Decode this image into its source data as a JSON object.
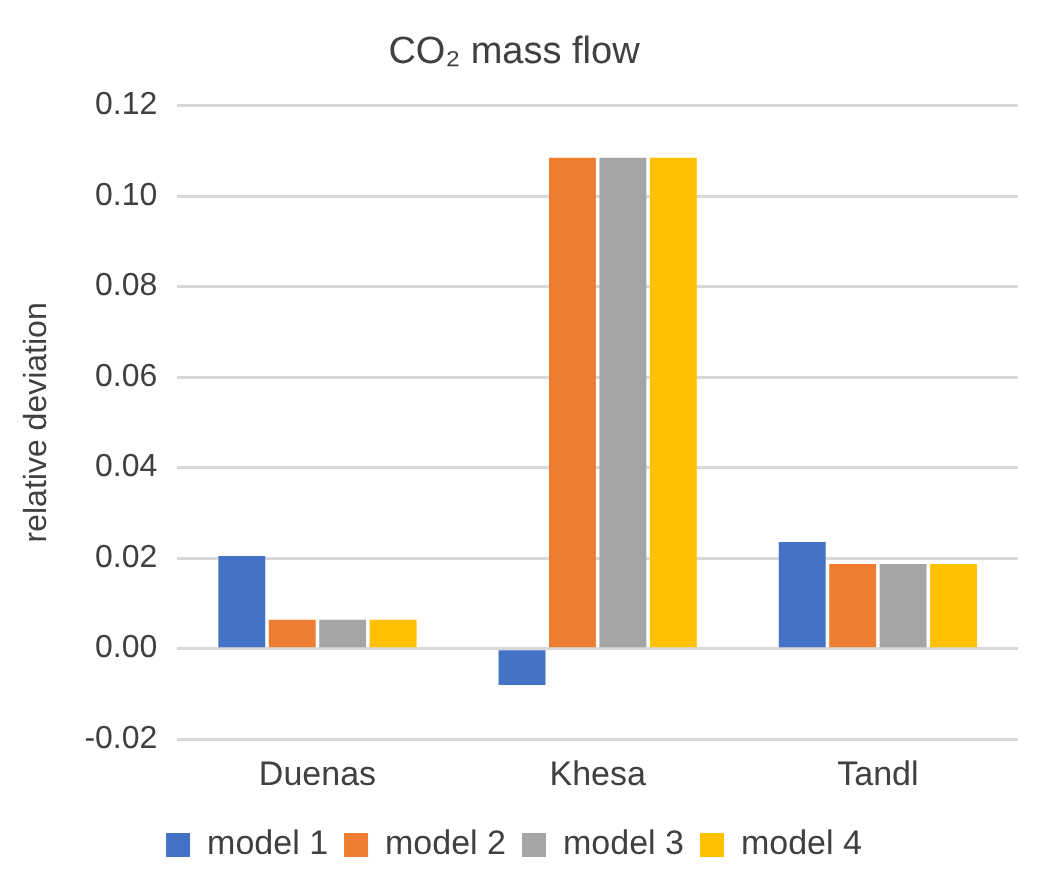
{
  "chart_data": {
    "type": "bar",
    "title": "CO₂ mass flow",
    "ylabel": "relative deviation",
    "categories": [
      "Duenas",
      "Khesa",
      "Tandl"
    ],
    "series": [
      {
        "name": "model 1",
        "color": "#4472c4",
        "values": [
          0.0205,
          -0.008,
          0.0236
        ]
      },
      {
        "name": "model 2",
        "color": "#ed7d31",
        "values": [
          0.0064,
          0.1085,
          0.0187
        ]
      },
      {
        "name": "model 3",
        "color": "#a5a5a5",
        "values": [
          0.0064,
          0.1085,
          0.0187
        ]
      },
      {
        "name": "model 4",
        "color": "#ffc000",
        "values": [
          0.0064,
          0.1085,
          0.0187
        ]
      }
    ],
    "ylim": [
      -0.02,
      0.12
    ],
    "yticks": [
      -0.02,
      {
        "value": 0,
        "label": "0.00"
      },
      0.02,
      0.04,
      0.06,
      0.08,
      {
        "value": 0.1,
        "label": "0.10"
      },
      0.12
    ],
    "grid": "y",
    "legend": "bottom"
  }
}
